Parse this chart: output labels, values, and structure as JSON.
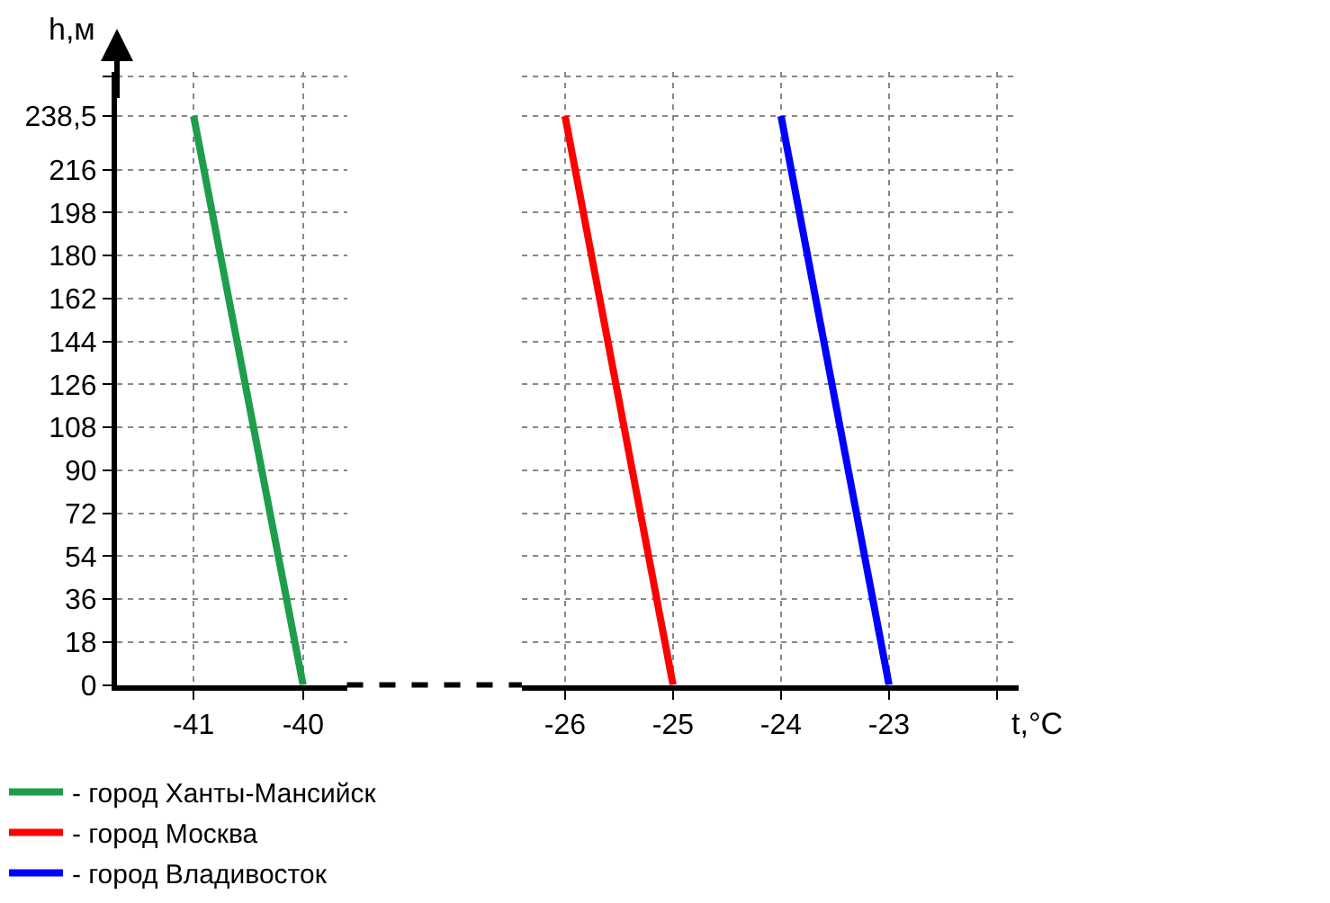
{
  "chart_data": [
    {
      "type": "line",
      "ylabel": "h,м",
      "xlim": [
        -41.7,
        -39.6
      ],
      "xticks": [
        -41,
        -40
      ],
      "ylim": [
        0,
        257
      ],
      "yticks": [
        0,
        18,
        36,
        54,
        72,
        90,
        108,
        126,
        144,
        162,
        180,
        198,
        216,
        {
          "value": 238.5,
          "label": "238,5"
        },
        {
          "value": 255,
          "label": null
        }
      ],
      "grid": true,
      "legend": "bottom",
      "line_style": "solid",
      "series": [
        {
          "name": "- город Ханты-Мансийск",
          "color": "#1e9e4a",
          "x": [
            -40,
            -41
          ],
          "values": [
            0,
            238.5
          ]
        }
      ]
    },
    {
      "type": "line",
      "xlabel": "t,°C",
      "xlim": [
        -26.4,
        -21.8
      ],
      "xticks": [
        -26,
        -25,
        -24,
        -23,
        {
          "value": -22,
          "label": null
        }
      ],
      "ylim": [
        0,
        257
      ],
      "yticks": [
        0,
        18,
        36,
        54,
        72,
        90,
        108,
        126,
        144,
        162,
        180,
        198,
        216,
        238.5,
        255
      ],
      "grid": true,
      "legend": "bottom",
      "line_style": "solid",
      "tick_labels": "x",
      "series": [
        {
          "name": "- город Москва",
          "color": "#ff0000",
          "x": [
            -25,
            -26
          ],
          "values": [
            0,
            238.5
          ]
        },
        {
          "name": "- город Владивосток",
          "color": "#0000ff",
          "x": [
            -23,
            -24
          ],
          "values": [
            0,
            238.5
          ]
        }
      ]
    }
  ]
}
